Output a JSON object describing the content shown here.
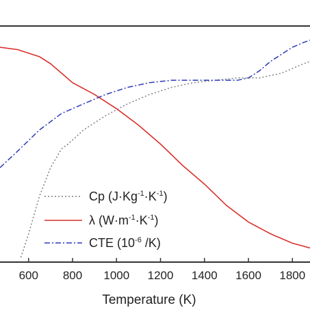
{
  "chart_data": {
    "type": "line",
    "xlabel": "Temperature (K)",
    "xlim": [
      470,
      1880
    ],
    "ylim": [
      0,
      1
    ],
    "x_ticks": [
      "600",
      "800",
      "1000",
      "1200",
      "1400",
      "1600",
      "1800"
    ],
    "grid": false,
    "legend_position": "bottom-center",
    "series": [
      {
        "name": "Cp (J·Kg-1·K-1)",
        "legend": {
          "base1": "Cp (J·Kg",
          "sup1": "-1",
          "mid": "·K",
          "sup2": "-1",
          "end": ")"
        },
        "color": "#7f7f7f",
        "style": "dotted",
        "x": [
          565,
          600,
          650,
          700,
          750,
          780,
          850,
          950,
          1050,
          1150,
          1250,
          1350,
          1450,
          1550,
          1650,
          1700,
          1750,
          1800,
          1850,
          1880
        ],
        "y": [
          0.02,
          0.12,
          0.28,
          0.4,
          0.48,
          0.5,
          0.56,
          0.62,
          0.67,
          0.71,
          0.74,
          0.76,
          0.77,
          0.78,
          0.78,
          0.79,
          0.8,
          0.82,
          0.84,
          0.85
        ]
      },
      {
        "name": "λ (W·m-1·K-1)",
        "legend": {
          "base1": "λ (W·m",
          "sup1": "-1",
          "mid": "·K",
          "sup2": "-1",
          "end": ")"
        },
        "color": "#d9302c",
        "style": "solid",
        "x": [
          470,
          550,
          650,
          700,
          750,
          800,
          900,
          1000,
          1100,
          1200,
          1300,
          1400,
          1500,
          1600,
          1700,
          1800,
          1880
        ],
        "y": [
          0.91,
          0.9,
          0.87,
          0.84,
          0.8,
          0.76,
          0.71,
          0.65,
          0.58,
          0.5,
          0.41,
          0.33,
          0.24,
          0.17,
          0.12,
          0.08,
          0.06
        ]
      },
      {
        "name": "CTE (10-6 /K)",
        "legend": {
          "base1": "CTE (10",
          "sup1": "-6",
          "mid": " /K)",
          "sup2": "",
          "end": ""
        },
        "color": "#2b39b8",
        "style": "dashdot",
        "x": [
          470,
          550,
          650,
          750,
          850,
          950,
          1050,
          1150,
          1250,
          1350,
          1450,
          1550,
          1600,
          1650,
          1700,
          1750,
          1800,
          1850,
          1880
        ],
        "y": [
          0.4,
          0.47,
          0.56,
          0.63,
          0.67,
          0.71,
          0.74,
          0.76,
          0.77,
          0.77,
          0.77,
          0.77,
          0.78,
          0.81,
          0.85,
          0.88,
          0.91,
          0.93,
          0.94
        ]
      }
    ]
  }
}
